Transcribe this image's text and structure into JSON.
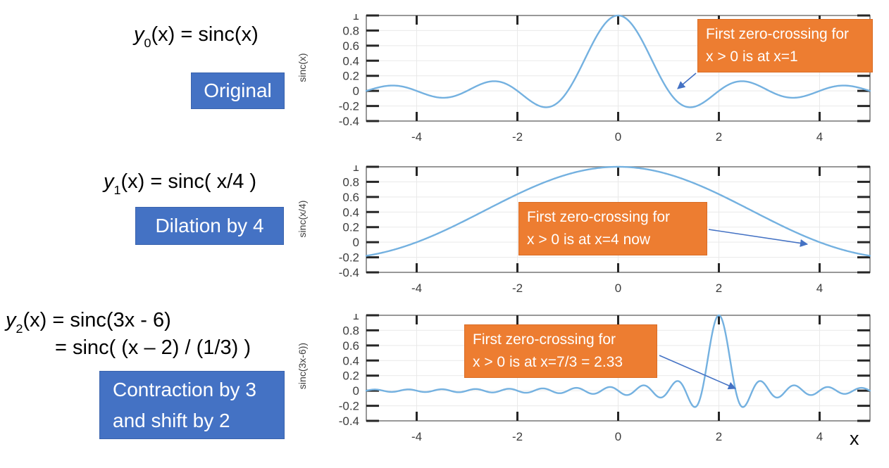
{
  "figure": {
    "colors": {
      "curve": "#74b1e0",
      "note_bg": "#ED7D31",
      "note_text": "#ffffff",
      "tag_bg": "#4472C4",
      "tag_text": "#ffffff",
      "arrow": "#4472C4",
      "axis_border": "#7f7f7f",
      "tick": "#262626",
      "grid": "#e9e9e9",
      "tick_label": "#3d3d3d"
    }
  },
  "panels": [
    {
      "eq_lines": [
        {
          "lead": "y",
          "sub": "0",
          "body": "(x) = sinc(x)"
        }
      ],
      "tag_lines": [
        "Original"
      ]
    },
    {
      "eq_lines": [
        {
          "lead": "y",
          "sub": "1",
          "body": "(x) = sinc( x/4 )"
        }
      ],
      "tag_lines": [
        "Dilation by 4"
      ]
    },
    {
      "eq_lines": [
        {
          "lead": "y",
          "sub": "2",
          "body": "(x) = sinc(3x - 6)"
        },
        {
          "lead": "",
          "sub": "",
          "body": "= sinc( (x – 2) / (1/3) )"
        }
      ],
      "tag_lines": [
        "Contraction by 3",
        "and shift by 2"
      ]
    }
  ],
  "chart_data": [
    {
      "type": "line",
      "function": "y0(x) = sinc(x)",
      "expression": {
        "coeff": 1,
        "offset": 0
      },
      "ylabel": "sinc(x)",
      "xlabel": "",
      "xlim": [
        -5,
        5
      ],
      "ylim": [
        -0.4,
        1
      ],
      "xticks": [
        -4,
        -2,
        0,
        2,
        4
      ],
      "yticks": [
        1,
        0.8,
        0.6,
        0.4,
        0.2,
        0,
        -0.2,
        -0.4
      ],
      "grid": true,
      "first_zero_crossing_x": 1,
      "annotation": {
        "lines": [
          "First zero-crossing for",
          "x > 0 is at x=1"
        ],
        "arrow_points_to_x": 1
      }
    },
    {
      "type": "line",
      "function": "y1(x) = sinc( x/4 )",
      "expression": {
        "coeff": 0.25,
        "offset": 0
      },
      "ylabel": "sinc(x/4)",
      "xlabel": "",
      "xlim": [
        -5,
        5
      ],
      "ylim": [
        -0.4,
        1
      ],
      "xticks": [
        -4,
        -2,
        0,
        2,
        4
      ],
      "yticks": [
        1,
        0.8,
        0.6,
        0.4,
        0.2,
        0,
        -0.2,
        -0.4
      ],
      "grid": true,
      "first_zero_crossing_x": 4,
      "annotation": {
        "lines": [
          "First zero-crossing for",
          "x > 0 is at x=4 now"
        ],
        "arrow_points_to_x": 4
      }
    },
    {
      "type": "line",
      "function": "y2(x) = sinc(3x - 6)",
      "expression": {
        "coeff": 3,
        "offset": -6
      },
      "ylabel": "sinc(3x-6))",
      "xlabel": "x",
      "xlim": [
        -5,
        5
      ],
      "ylim": [
        -0.4,
        1
      ],
      "xticks": [
        -4,
        -2,
        0,
        2,
        4
      ],
      "yticks": [
        1,
        0.8,
        0.6,
        0.4,
        0.2,
        0,
        -0.2,
        -0.4
      ],
      "grid": true,
      "first_zero_crossing_x": 2.333,
      "annotation": {
        "lines": [
          "First zero-crossing for",
          "x > 0 is at x=7/3 = 2.33"
        ],
        "arrow_points_to_x": 2.33
      }
    }
  ]
}
